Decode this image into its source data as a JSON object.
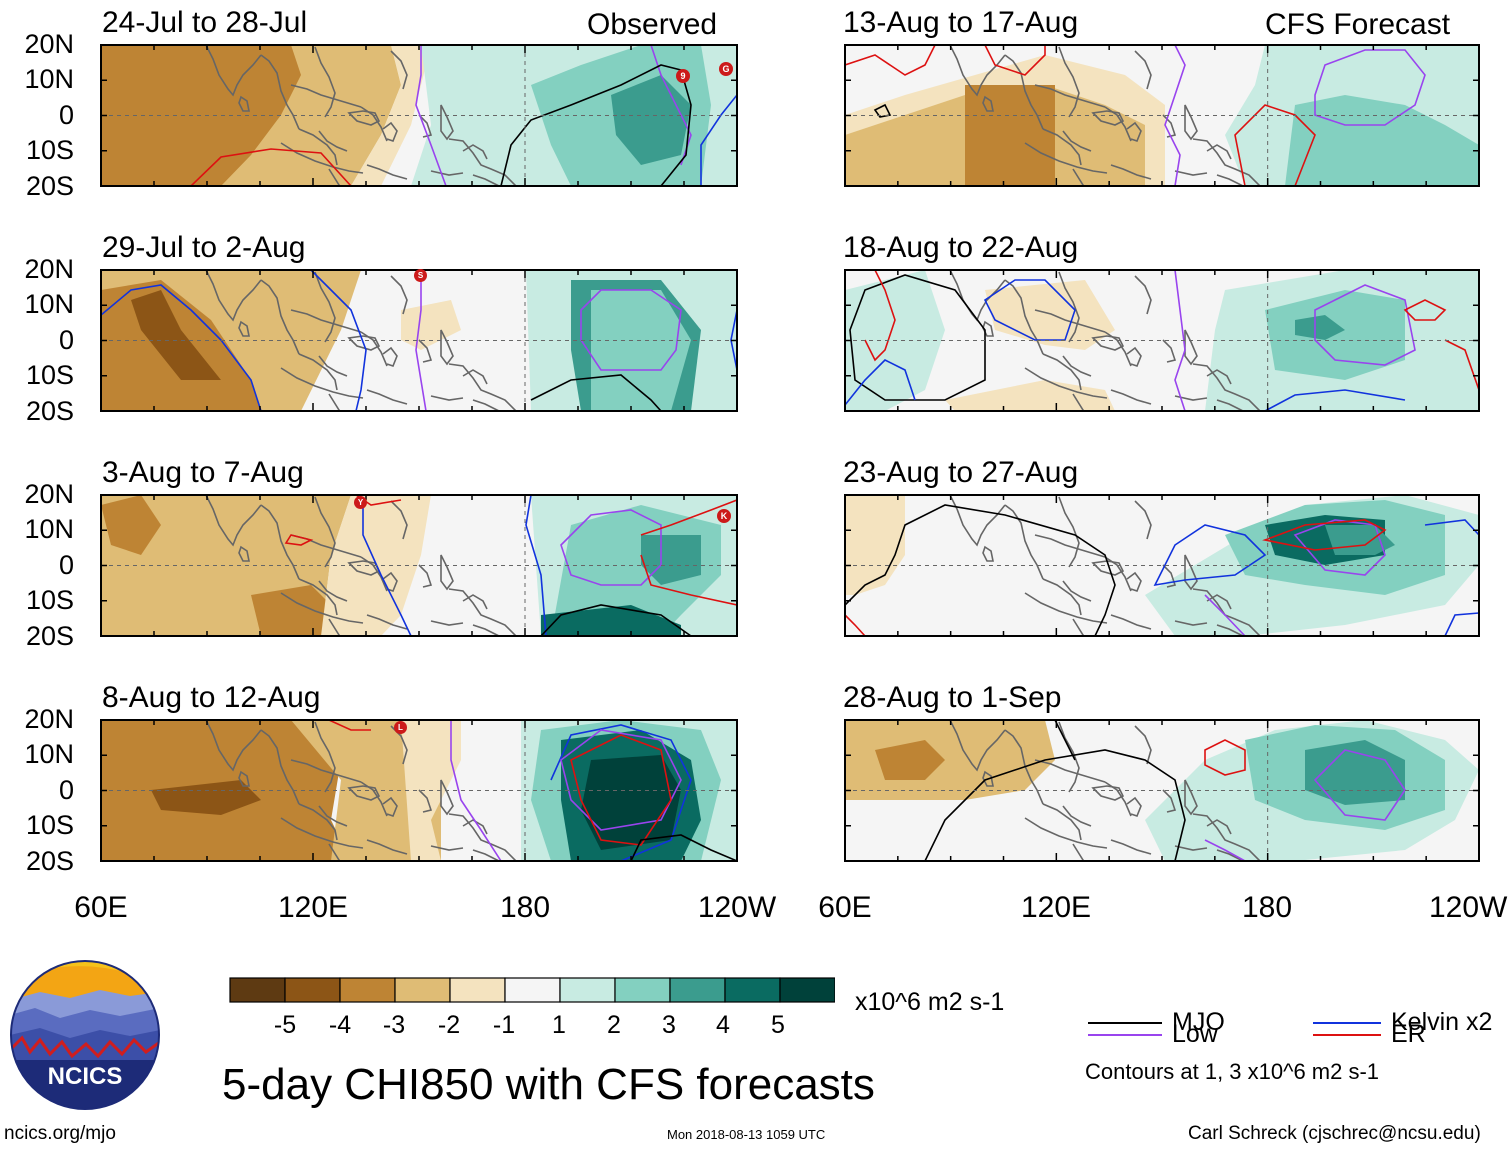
{
  "columns": {
    "observed_label": "Observed",
    "forecast_label": "CFS Forecast"
  },
  "panels": [
    {
      "period": "24-Jul to 28-Jul",
      "storms": [
        {
          "symbol": "9"
        },
        {
          "symbol": "G"
        }
      ]
    },
    {
      "period": "29-Jul to 2-Aug",
      "storms": [
        {
          "symbol": "S"
        }
      ]
    },
    {
      "period": "3-Aug to 7-Aug",
      "storms": [
        {
          "symbol": "Y"
        },
        {
          "symbol": "K"
        }
      ]
    },
    {
      "period": "8-Aug to 12-Aug",
      "storms": [
        {
          "symbol": "L"
        }
      ]
    },
    {
      "period": "13-Aug to 17-Aug",
      "storms": []
    },
    {
      "period": "18-Aug to 22-Aug",
      "storms": []
    },
    {
      "period": "23-Aug to 27-Aug",
      "storms": []
    },
    {
      "period": "28-Aug to 1-Sep",
      "storms": []
    }
  ],
  "lat_labels": [
    "20N",
    "10N",
    "0",
    "10S",
    "20S"
  ],
  "lon_labels": [
    "60E",
    "120E",
    "180",
    "120W"
  ],
  "colorbar": {
    "labels": [
      "-5",
      "-4",
      "-3",
      "-2",
      "-1",
      "1",
      "2",
      "3",
      "4",
      "5"
    ],
    "colors": [
      "#5e3a12",
      "#8c5516",
      "#be8434",
      "#dfbc75",
      "#f4e3bf",
      "#f5f5f5",
      "#c8ebe2",
      "#83d0c0",
      "#3b9c8e",
      "#0a6b61",
      "#00413a"
    ],
    "units": "x10^6 m2 s-1"
  },
  "legend": {
    "items": [
      {
        "label": "MJO",
        "color": "#000000"
      },
      {
        "label": "Kelvin x2",
        "color": "#1133dd"
      },
      {
        "label": "Low",
        "color": "#9944ee"
      },
      {
        "label": "ER",
        "color": "#dd1111"
      }
    ],
    "contours_note": "Contours at 1, 3 x10^6 m2 s-1"
  },
  "logo_text": "NCICS",
  "title": "5-day CHI850 with CFS forecasts",
  "footer": {
    "website": "ncics.org/mjo",
    "timestamp": "Mon 2018-08-13 1059 UTC",
    "credit": "Carl Schreck (cjschrec@ncsu.edu)"
  }
}
